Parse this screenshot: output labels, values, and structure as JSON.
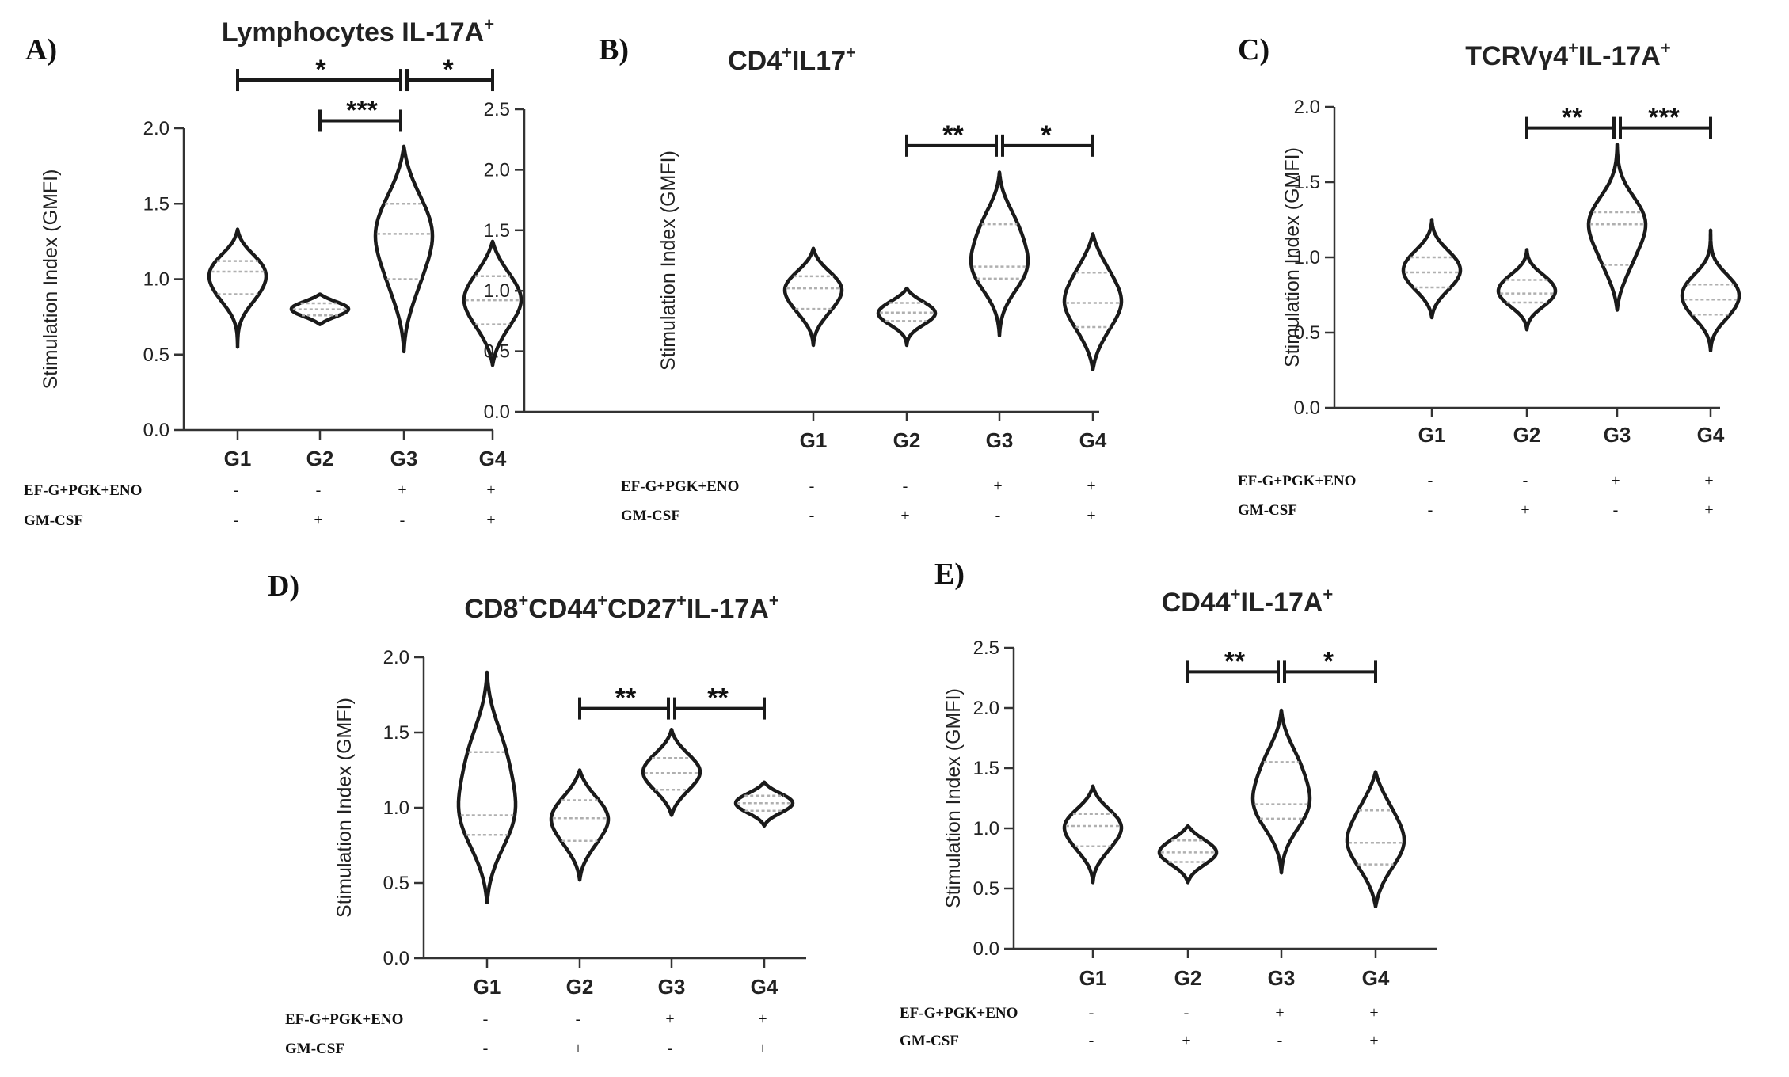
{
  "chart_data": [
    {
      "panel": "A)",
      "type": "violin",
      "title": "Lymphocytes IL-17A",
      "title_sup": "+",
      "ylabel": "Stimulation Index (GMFI)",
      "ylim": [
        0,
        2.0
      ],
      "yticks": [
        "0.0",
        "0.5",
        "1.0",
        "1.5",
        "2.0"
      ],
      "categories": [
        "G1",
        "G2",
        "G3",
        "G4"
      ],
      "violins": [
        {
          "group": "G1",
          "min": 0.55,
          "max": 1.33,
          "median": 1.05,
          "q1": 0.9,
          "q3": 1.12
        },
        {
          "group": "G2",
          "min": 0.7,
          "max": 0.9,
          "median": 0.8,
          "q1": 0.76,
          "q3": 0.84
        },
        {
          "group": "G3",
          "min": 0.52,
          "max": 1.88,
          "median": 1.3,
          "q1": 1.0,
          "q3": 1.5
        },
        {
          "group": "G4",
          "min": 0.43,
          "max": 1.25,
          "median": 0.86,
          "q1": 0.7,
          "q3": 1.02
        }
      ],
      "significance": [
        {
          "from": "G1",
          "to": "G3",
          "label": "*",
          "level": 2.32
        },
        {
          "from": "G3",
          "to": "G4",
          "label": "*",
          "level": 2.32
        },
        {
          "from": "G2",
          "to": "G3",
          "label": "***",
          "level": 2.05
        }
      ]
    },
    {
      "panel": "B)",
      "type": "violin",
      "title": "CD4",
      "title_sup": "+",
      "title_rest": "IL17",
      "title_sup2": "+",
      "ylabel": "Stimulation Index (GMFI)",
      "ylim": [
        0,
        2.5
      ],
      "yticks": [
        "0.0",
        "0.5",
        "1.0",
        "1.5",
        "2.0",
        "2.5"
      ],
      "categories": [
        "G1",
        "G2",
        "G3",
        "G4"
      ],
      "violins": [
        {
          "group": "G1",
          "min": 0.55,
          "max": 1.35,
          "median": 1.02,
          "q1": 0.85,
          "q3": 1.12
        },
        {
          "group": "G2",
          "min": 0.55,
          "max": 1.02,
          "median": 0.82,
          "q1": 0.75,
          "q3": 0.9
        },
        {
          "group": "G3",
          "min": 0.63,
          "max": 1.98,
          "median": 1.2,
          "q1": 1.1,
          "q3": 1.55
        },
        {
          "group": "G4",
          "min": 0.35,
          "max": 1.47,
          "median": 0.9,
          "q1": 0.7,
          "q3": 1.15
        }
      ],
      "significance": [
        {
          "from": "G2",
          "to": "G3",
          "label": "**",
          "level": 2.2
        },
        {
          "from": "G3",
          "to": "G4",
          "label": "*",
          "level": 2.2
        }
      ]
    },
    {
      "panel": "C)",
      "type": "violin",
      "title": "TCRVγ4",
      "title_sup": "+",
      "title_rest": "IL-17A",
      "title_sup2": "+",
      "ylabel": "Stimulation Index (GMFI)",
      "ylim": [
        0,
        2.0
      ],
      "yticks": [
        "0.0",
        "0.5",
        "1.0",
        "1.5",
        "2.0"
      ],
      "categories": [
        "G1",
        "G2",
        "G3",
        "G4"
      ],
      "violins": [
        {
          "group": "G1",
          "min": 0.6,
          "max": 1.25,
          "median": 0.9,
          "q1": 0.8,
          "q3": 1.0
        },
        {
          "group": "G2",
          "min": 0.52,
          "max": 1.05,
          "median": 0.76,
          "q1": 0.7,
          "q3": 0.85
        },
        {
          "group": "G3",
          "min": 0.65,
          "max": 1.75,
          "median": 1.22,
          "q1": 0.95,
          "q3": 1.3
        },
        {
          "group": "G4",
          "min": 0.38,
          "max": 1.18,
          "median": 0.72,
          "q1": 0.62,
          "q3": 0.82
        }
      ],
      "significance": [
        {
          "from": "G2",
          "to": "G3",
          "label": "**",
          "level": 1.86
        },
        {
          "from": "G3",
          "to": "G4",
          "label": "***",
          "level": 1.86
        }
      ]
    },
    {
      "panel": "D)",
      "type": "violin",
      "title": "CD8",
      "title_sup": "+",
      "title_rest": "CD44",
      "title_sup2": "+",
      "title_rest2": "CD27",
      "title_sup3": "+",
      "title_rest3": "IL-17A",
      "title_sup4": "+",
      "ylabel": "Stimulation Index (GMFI)",
      "ylim": [
        0,
        2.0
      ],
      "yticks": [
        "0.0",
        "0.5",
        "1.0",
        "1.5",
        "2.0"
      ],
      "categories": [
        "G1",
        "G2",
        "G3",
        "G4"
      ],
      "violins": [
        {
          "group": "G1",
          "min": 0.37,
          "max": 1.9,
          "median": 0.95,
          "q1": 0.82,
          "q3": 1.37
        },
        {
          "group": "G2",
          "min": 0.52,
          "max": 1.25,
          "median": 0.93,
          "q1": 0.78,
          "q3": 1.05
        },
        {
          "group": "G3",
          "min": 0.95,
          "max": 1.52,
          "median": 1.23,
          "q1": 1.12,
          "q3": 1.33
        },
        {
          "group": "G4",
          "min": 0.88,
          "max": 1.17,
          "median": 1.03,
          "q1": 0.98,
          "q3": 1.08
        }
      ],
      "significance": [
        {
          "from": "G2",
          "to": "G3",
          "label": "**",
          "level": 1.66
        },
        {
          "from": "G3",
          "to": "G4",
          "label": "**",
          "level": 1.66
        }
      ]
    },
    {
      "panel": "E)",
      "type": "violin",
      "title": "CD44",
      "title_sup": "+",
      "title_rest": "IL-17A",
      "title_sup2": "+",
      "ylabel": "Stimulation Index (GMFI)",
      "ylim": [
        0,
        2.5
      ],
      "yticks": [
        "0.0",
        "0.5",
        "1.0",
        "1.5",
        "2.0",
        "2.5"
      ],
      "categories": [
        "G1",
        "G2",
        "G3",
        "G4"
      ],
      "violins": [
        {
          "group": "G1",
          "min": 0.55,
          "max": 1.35,
          "median": 1.02,
          "q1": 0.85,
          "q3": 1.12
        },
        {
          "group": "G2",
          "min": 0.55,
          "max": 1.02,
          "median": 0.8,
          "q1": 0.72,
          "q3": 0.9
        },
        {
          "group": "G3",
          "min": 0.63,
          "max": 1.98,
          "median": 1.2,
          "q1": 1.08,
          "q3": 1.55
        },
        {
          "group": "G4",
          "min": 0.35,
          "max": 1.47,
          "median": 0.88,
          "q1": 0.7,
          "q3": 1.15
        }
      ],
      "significance": [
        {
          "from": "G2",
          "to": "G3",
          "label": "**",
          "level": 2.3
        },
        {
          "from": "G3",
          "to": "G4",
          "label": "*",
          "level": 2.3
        }
      ]
    }
  ],
  "conditions": {
    "rows": [
      {
        "label": "EF-G+PGK+ENO",
        "values": [
          "-",
          "-",
          "+",
          "+"
        ]
      },
      {
        "label": "GM-CSF",
        "values": [
          "-",
          "+",
          "-",
          "+"
        ]
      }
    ]
  },
  "colors": {
    "violin_stroke": "#1a1a1a",
    "quartile_line": "#b0b0b0",
    "axis": "#333333"
  }
}
